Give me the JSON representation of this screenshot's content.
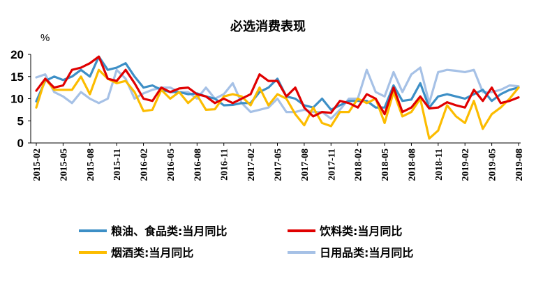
{
  "chart_data": {
    "type": "line",
    "title": "必选消费表现",
    "ylabel": "%",
    "xlabel": "",
    "ylim": [
      0,
      20
    ],
    "yticks": [
      0,
      5,
      10,
      15,
      20
    ],
    "x_tick_labels": [
      "2015-02",
      "2015-05",
      "2015-08",
      "2015-11",
      "2016-02",
      "2016-05",
      "2016-08",
      "2016-11",
      "2017-02",
      "2017-05",
      "2017-08",
      "2017-11",
      "2018-02",
      "2018-05",
      "2018-08",
      "2018-11",
      "2019-02",
      "2019-05",
      "2019-08"
    ],
    "x": [
      "2015-02",
      "2015-03",
      "2015-04",
      "2015-05",
      "2015-06",
      "2015-07",
      "2015-08",
      "2015-09",
      "2015-10",
      "2015-11",
      "2015-12",
      "2016-01",
      "2016-02",
      "2016-03",
      "2016-04",
      "2016-05",
      "2016-06",
      "2016-07",
      "2016-08",
      "2016-09",
      "2016-10",
      "2016-11",
      "2016-12",
      "2017-01",
      "2017-02",
      "2017-03",
      "2017-04",
      "2017-05",
      "2017-06",
      "2017-07",
      "2017-08",
      "2017-09",
      "2017-10",
      "2017-11",
      "2017-12",
      "2018-01",
      "2018-02",
      "2018-03",
      "2018-04",
      "2018-05",
      "2018-06",
      "2018-07",
      "2018-08",
      "2018-09",
      "2018-10",
      "2018-11",
      "2018-12",
      "2019-01",
      "2019-02",
      "2019-03",
      "2019-04",
      "2019-05",
      "2019-06",
      "2019-07",
      "2019-08"
    ],
    "legend_position": "bottom",
    "series": [
      {
        "name": "粮油、食品类:当月同比",
        "color": "#3d8fc6",
        "values": [
          9.4,
          14.0,
          15.0,
          14.2,
          15.0,
          16.5,
          15.0,
          19.5,
          16.5,
          17.0,
          18.0,
          15.0,
          12.5,
          13.0,
          12.0,
          11.5,
          11.5,
          11.0,
          11.2,
          10.5,
          10.0,
          8.5,
          8.6,
          9.0,
          9.0,
          11.5,
          12.5,
          14.5,
          10.5,
          10.0,
          8.5,
          8.0,
          10.0,
          7.5,
          8.5,
          9.5,
          9.5,
          9.5,
          8.0,
          8.0,
          13.0,
          9.5,
          9.8,
          13.5,
          8.0,
          10.5,
          11.0,
          10.5,
          10.0,
          11.0,
          12.0,
          9.5,
          11.0,
          12.0,
          12.5
        ]
      },
      {
        "name": "饮料类:当月同比",
        "color": "#e00000",
        "values": [
          11.8,
          14.5,
          12.5,
          13.0,
          16.5,
          17.0,
          18.0,
          19.5,
          14.5,
          14.0,
          16.5,
          13.5,
          10.0,
          9.5,
          12.5,
          11.5,
          12.3,
          12.5,
          11.0,
          10.5,
          9.0,
          10.0,
          9.0,
          10.0,
          11.0,
          15.5,
          14.0,
          14.0,
          10.5,
          12.5,
          8.0,
          6.0,
          7.0,
          6.8,
          9.5,
          9.0,
          8.0,
          11.0,
          10.0,
          6.5,
          12.5,
          7.0,
          8.0,
          10.5,
          7.8,
          8.0,
          9.2,
          8.5,
          8.0,
          12.0,
          9.5,
          12.5,
          9.0,
          9.5,
          10.3
        ]
      },
      {
        "name": "烟酒类:当月同比",
        "color": "#fcbc00",
        "values": [
          8.0,
          14.5,
          12.0,
          12.0,
          12.0,
          15.0,
          11.0,
          16.5,
          14.5,
          13.5,
          14.0,
          11.5,
          7.2,
          7.5,
          12.0,
          10.0,
          11.5,
          9.0,
          10.8,
          7.5,
          7.6,
          10.5,
          11.0,
          10.5,
          8.5,
          12.5,
          8.5,
          11.0,
          10.0,
          6.5,
          4.0,
          8.0,
          4.5,
          3.8,
          7.0,
          7.0,
          10.0,
          9.0,
          10.0,
          4.5,
          11.5,
          6.0,
          7.0,
          10.0,
          1.0,
          2.8,
          8.5,
          6.0,
          4.5,
          9.5,
          3.2,
          6.5,
          8.0,
          10.0,
          12.5
        ]
      },
      {
        "name": "日用品类:当月同比",
        "color": "#a6c1e6",
        "values": [
          14.8,
          15.5,
          11.5,
          10.5,
          9.0,
          11.5,
          10.0,
          9.0,
          10.0,
          16.5,
          14.5,
          10.0,
          11.2,
          12.0,
          12.5,
          12.5,
          11.5,
          11.5,
          10.0,
          12.5,
          10.0,
          11.0,
          13.5,
          9.0,
          7.0,
          7.5,
          8.0,
          10.0,
          7.0,
          7.0,
          7.5,
          7.0,
          7.0,
          5.5,
          7.5,
          10.0,
          10.0,
          16.5,
          11.5,
          10.5,
          16.0,
          11.5,
          15.5,
          17.0,
          9.0,
          16.0,
          16.5,
          16.3,
          16.0,
          16.5,
          11.5,
          11.5,
          12.0,
          13.0,
          12.8
        ]
      }
    ]
  }
}
